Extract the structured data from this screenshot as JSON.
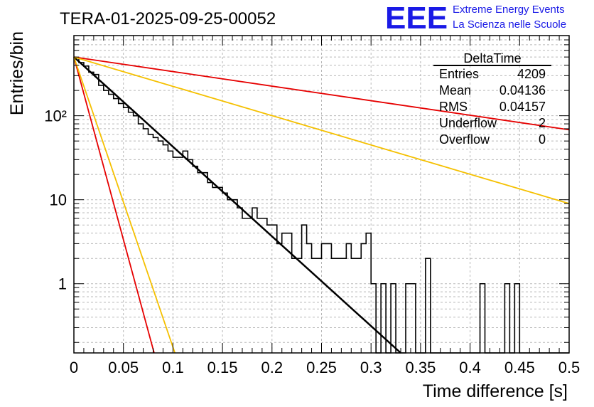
{
  "header": {
    "run_title": "TERA-01-2025-09-25-00052",
    "logo_text": "EEE",
    "logo_line1": "Extreme Energy Events",
    "logo_line2": "La Scienza nelle Scuole",
    "logo_color": "#1a1ae6"
  },
  "stats_box": {
    "title": "DeltaTime",
    "rows": [
      {
        "label": "Entries",
        "value": "4209"
      },
      {
        "label": "Mean",
        "value": "0.04136"
      },
      {
        "label": "RMS",
        "value": "0.04157"
      },
      {
        "label": "Underflow",
        "value": "2"
      },
      {
        "label": "Overflow",
        "value": "0"
      }
    ]
  },
  "chart_data": {
    "type": "line",
    "title": "TERA-01-2025-09-25-00052",
    "xlabel": "Time difference [s]",
    "ylabel": "Entries/bin",
    "x_scale": "linear",
    "y_scale": "log",
    "xlim": [
      0,
      0.5
    ],
    "ylim": [
      0.15,
      900
    ],
    "grid": true,
    "x_ticks": [
      0,
      0.05,
      0.1,
      0.15,
      0.2,
      0.25,
      0.3,
      0.35,
      0.4,
      0.45,
      0.5
    ],
    "x_tick_labels": [
      "0",
      "0.05",
      "0.1",
      "0.15",
      "0.2",
      "0.25",
      "0.3",
      "0.35",
      "0.4",
      "0.45",
      "0.5"
    ],
    "y_ticks": [
      1,
      10,
      100
    ],
    "y_tick_labels": [
      "1",
      "10",
      "10²"
    ],
    "histogram": {
      "name": "DeltaTime",
      "bin_width": 0.005,
      "x_start": 0,
      "color": "#000000",
      "counts": [
        490,
        430,
        390,
        330,
        310,
        230,
        200,
        180,
        160,
        140,
        125,
        110,
        100,
        80,
        70,
        60,
        55,
        50,
        45,
        38,
        32,
        32,
        38,
        30,
        25,
        21,
        21,
        16,
        14,
        14,
        12,
        10,
        10,
        8,
        6,
        6,
        8,
        6,
        6,
        5,
        5,
        3,
        4,
        4,
        2,
        2,
        5,
        3,
        2,
        2,
        3,
        3,
        2,
        2,
        2,
        3,
        2,
        2,
        3,
        4,
        1,
        0,
        1,
        0,
        1,
        0,
        0,
        1,
        1,
        0,
        0,
        2,
        0,
        0,
        0,
        0,
        0,
        0,
        0,
        0,
        0,
        0,
        1,
        0,
        0,
        0,
        0,
        1,
        0,
        1,
        0,
        0,
        0,
        0,
        0,
        0,
        0,
        0,
        0,
        0
      ]
    },
    "series": [
      {
        "name": "fit",
        "color": "#000000",
        "width": 2.5,
        "x": [
          0,
          0.33
        ],
        "values": [
          500,
          0.15
        ]
      },
      {
        "name": "red-slow",
        "color": "#e60000",
        "width": 1.8,
        "x": [
          0,
          0.5
        ],
        "values": [
          500,
          68
        ]
      },
      {
        "name": "orange-slow",
        "color": "#f5c000",
        "width": 1.8,
        "x": [
          0,
          0.5
        ],
        "values": [
          500,
          9
        ]
      },
      {
        "name": "red-fast",
        "color": "#e60000",
        "width": 1.8,
        "x": [
          0,
          0.081
        ],
        "values": [
          500,
          0.15
        ]
      },
      {
        "name": "orange-fast",
        "color": "#f5c000",
        "width": 1.8,
        "x": [
          0,
          0.102
        ],
        "values": [
          500,
          0.15
        ]
      }
    ]
  }
}
